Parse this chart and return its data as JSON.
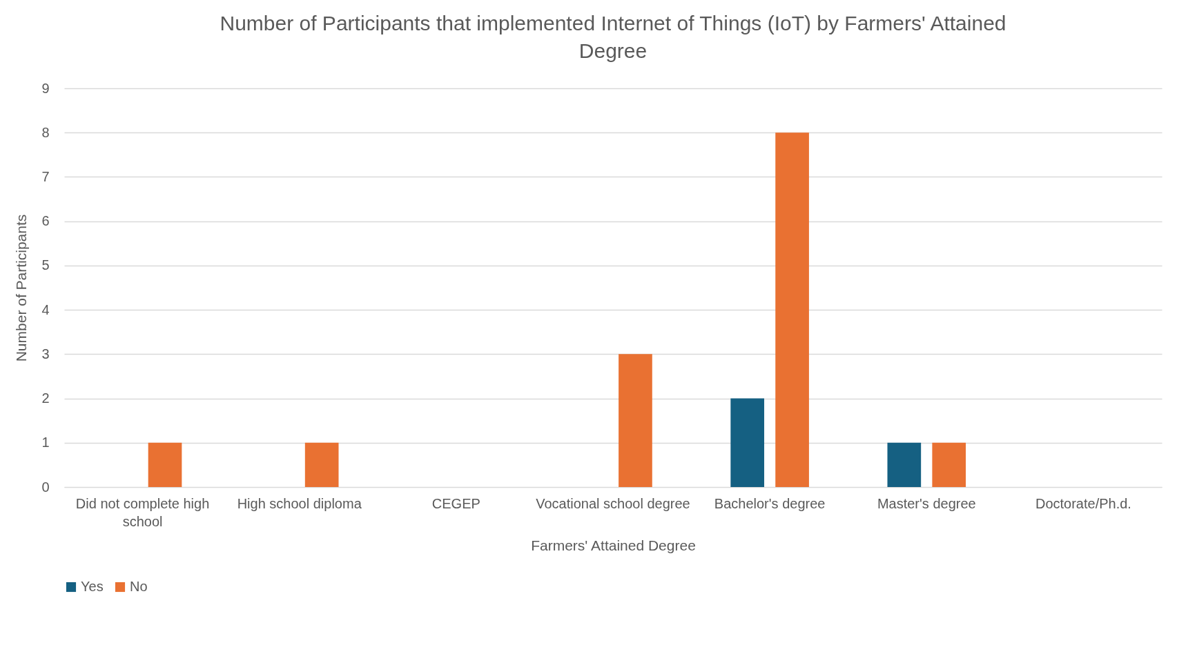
{
  "chart_data": {
    "type": "bar",
    "title": "Number of Participants that implemented Internet of Things (IoT) by Farmers' Attained Degree",
    "xlabel": "Farmers' Attained Degree",
    "ylabel": "Number of Participants",
    "categories": [
      "Did not complete high school",
      "High school diploma",
      "CEGEP",
      "Vocational school degree",
      "Bachelor's degree",
      "Master's degree",
      "Doctorate/Ph.d."
    ],
    "series": [
      {
        "name": "Yes",
        "color": "#156082",
        "values": [
          0,
          0,
          0,
          0,
          2,
          1,
          0
        ]
      },
      {
        "name": "No",
        "color": "#e97132",
        "values": [
          1,
          1,
          0,
          3,
          8,
          1,
          0
        ]
      }
    ],
    "ylim": [
      0,
      9
    ],
    "yticks": [
      0,
      1,
      2,
      3,
      4,
      5,
      6,
      7,
      8,
      9
    ],
    "grid": "y",
    "legend": "bottom"
  }
}
